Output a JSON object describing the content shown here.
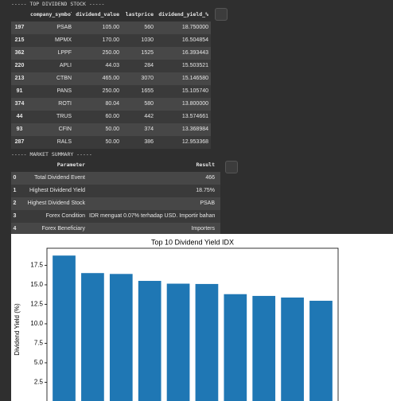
{
  "header1": "----- TOP DIVIDEND STOCK -----",
  "table1": {
    "columns": [
      "company_symbol",
      "dividend_value",
      "lastprice",
      "dividend_yield_%"
    ],
    "rows": [
      [
        "197",
        "PSAB",
        "105.00",
        "560",
        "18.750000"
      ],
      [
        "215",
        "MPMX",
        "170.00",
        "1030",
        "16.504854"
      ],
      [
        "362",
        "LPPF",
        "250.00",
        "1525",
        "16.393443"
      ],
      [
        "220",
        "APLI",
        "44.03",
        "284",
        "15.503521"
      ],
      [
        "213",
        "CTBN",
        "465.00",
        "3070",
        "15.146580"
      ],
      [
        "91",
        "PANS",
        "250.00",
        "1655",
        "15.105740"
      ],
      [
        "374",
        "ROTI",
        "80.04",
        "580",
        "13.800000"
      ],
      [
        "44",
        "TRUS",
        "60.00",
        "442",
        "13.574661"
      ],
      [
        "93",
        "CFIN",
        "50.00",
        "374",
        "13.368984"
      ],
      [
        "287",
        "RALS",
        "50.00",
        "386",
        "12.953368"
      ]
    ]
  },
  "header2": "----- MARKET SUMMARY -----",
  "table2": {
    "columns": [
      "Parameter",
      "Result"
    ],
    "rows": [
      [
        "0",
        "Total Dividend Event",
        "466"
      ],
      [
        "1",
        "Highest Dividend Yield",
        "18.75%"
      ],
      [
        "2",
        "Highest Dividend Stock",
        "PSAB"
      ],
      [
        "3",
        "Forex Condition",
        "IDR menguat 0.07% terhadap USD. Importir bahan..."
      ],
      [
        "4",
        "Forex Beneficiary",
        "Importers"
      ]
    ]
  },
  "chart_data": {
    "type": "bar",
    "title": "Top 10 Dividend Yield IDX",
    "y_label": "Dividend Yield (%)",
    "values": [
      18.75,
      16.504854,
      16.393443,
      15.503521,
      15.14658,
      15.10574,
      13.8,
      13.574661,
      13.368984,
      12.953368
    ],
    "color": "#1f77b4",
    "ylim": [
      0,
      19.69
    ],
    "yticks": [
      2.5,
      {
        "value": 5,
        "label": "5.0"
      },
      7.5,
      {
        "value": 10,
        "label": "10.0"
      },
      12.5,
      {
        "value": 15,
        "label": "15.0"
      },
      17.5
    ]
  }
}
